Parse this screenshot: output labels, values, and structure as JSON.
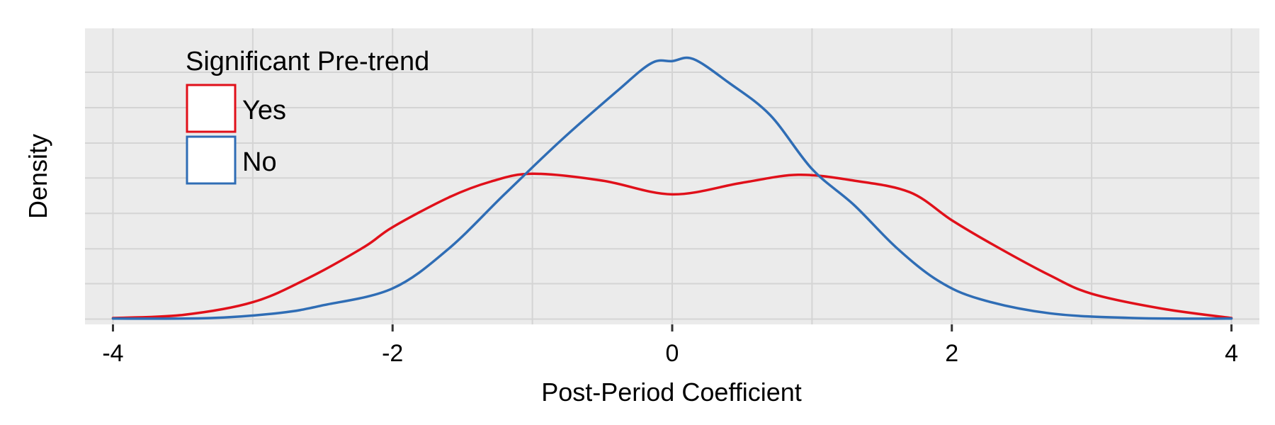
{
  "chart_data": {
    "type": "line",
    "subtype": "density",
    "title": "",
    "xlabel": "Post-Period Coefficient",
    "ylabel": "Density",
    "xlim": [
      -4.2,
      4.2
    ],
    "ylim": [
      -0.01,
      0.55
    ],
    "y_ticks": [
      0,
      0.067,
      0.133,
      0.2,
      0.267,
      0.333,
      0.4,
      0.467
    ],
    "x_ticks": [
      -4,
      -2,
      0,
      2,
      4
    ],
    "x_tick_labels": [
      "-4",
      "-2",
      "0",
      "2",
      "4"
    ],
    "x_minor_ticks": [
      -3,
      -1,
      1,
      3
    ],
    "y_tick_labels_shown": false,
    "grid": true,
    "background": "#EBEBEB",
    "legend": {
      "title": "Significant Pre-trend",
      "placement": "top-left",
      "entries": [
        "Yes",
        "No"
      ]
    },
    "series": [
      {
        "name": "Yes",
        "color": "#E0101A",
        "points": [
          [
            -4.0,
            0.002
          ],
          [
            -3.5,
            0.008
          ],
          [
            -3.0,
            0.032
          ],
          [
            -2.6,
            0.078
          ],
          [
            -2.2,
            0.137
          ],
          [
            -2.0,
            0.174
          ],
          [
            -1.6,
            0.23
          ],
          [
            -1.3,
            0.26
          ],
          [
            -1.0,
            0.275
          ],
          [
            -0.5,
            0.262
          ],
          [
            0.0,
            0.236
          ],
          [
            0.5,
            0.258
          ],
          [
            0.9,
            0.273
          ],
          [
            1.3,
            0.262
          ],
          [
            1.7,
            0.24
          ],
          [
            2.0,
            0.187
          ],
          [
            2.3,
            0.14
          ],
          [
            2.7,
            0.083
          ],
          [
            3.0,
            0.048
          ],
          [
            3.5,
            0.02
          ],
          [
            4.0,
            0.002
          ]
        ]
      },
      {
        "name": "No",
        "color": "#2F6DB5",
        "points": [
          [
            -4.0,
            0.001
          ],
          [
            -3.3,
            0.002
          ],
          [
            -2.8,
            0.012
          ],
          [
            -2.5,
            0.026
          ],
          [
            -2.0,
            0.058
          ],
          [
            -1.6,
            0.133
          ],
          [
            -1.2,
            0.236
          ],
          [
            -0.8,
            0.337
          ],
          [
            -0.4,
            0.43
          ],
          [
            -0.15,
            0.484
          ],
          [
            0.0,
            0.488
          ],
          [
            0.15,
            0.492
          ],
          [
            0.4,
            0.448
          ],
          [
            0.7,
            0.386
          ],
          [
            1.0,
            0.284
          ],
          [
            1.3,
            0.216
          ],
          [
            1.6,
            0.136
          ],
          [
            1.9,
            0.073
          ],
          [
            2.2,
            0.038
          ],
          [
            2.7,
            0.011
          ],
          [
            3.3,
            0.002
          ],
          [
            4.0,
            0.001
          ]
        ]
      }
    ]
  }
}
